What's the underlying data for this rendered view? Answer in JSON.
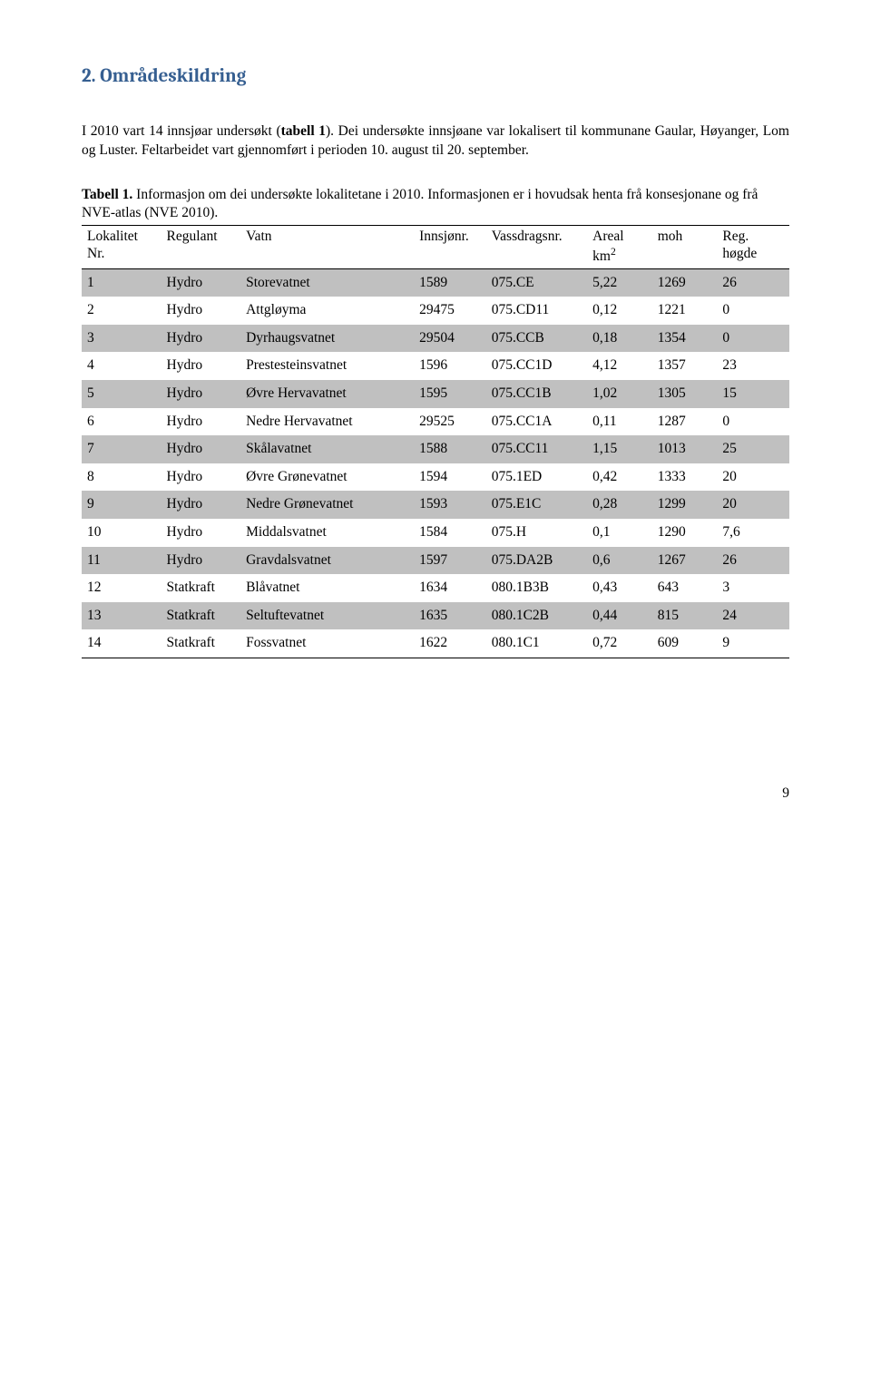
{
  "heading": "2. Områdeskildring",
  "intro_html": "I 2010 vart 14 innsjøar undersøkt (<b>tabell 1</b>). Dei undersøkte innsjøane var lokalisert til kommunane Gaular, Høyanger, Lom og Luster. Feltarbeidet vart gjennomført i perioden 10. august til 20. september.",
  "caption_html": "<b>Tabell 1.</b> Informasjon om dei undersøkte lokalitetane i 2010. Informasjonen er i hovudsak henta frå konsesjonane og frå NVE-atlas (NVE 2010).",
  "table": {
    "columns": [
      {
        "label_html": "Lokalitet<br>Nr.",
        "width": "11%"
      },
      {
        "label_html": "Regulant",
        "width": "11%"
      },
      {
        "label_html": "Vatn",
        "width": "24%"
      },
      {
        "label_html": "Innsjønr.",
        "width": "10%"
      },
      {
        "label_html": "Vassdragsnr.",
        "width": "14%"
      },
      {
        "label_html": "Areal<br>km<sup>2</sup>",
        "width": "9%"
      },
      {
        "label_html": "moh",
        "width": "9%"
      },
      {
        "label_html": "Reg.<br>høgde",
        "width": "10%"
      }
    ],
    "rows": [
      {
        "shaded": true,
        "cells": [
          "1",
          "Hydro",
          "Storevatnet",
          "1589",
          "075.CE",
          "5,22",
          "1269",
          "26"
        ]
      },
      {
        "shaded": false,
        "cells": [
          "2",
          "Hydro",
          "Attgløyma",
          "29475",
          "075.CD11",
          "0,12",
          "1221",
          "0"
        ]
      },
      {
        "shaded": true,
        "cells": [
          "3",
          "Hydro",
          "Dyrhaugsvatnet",
          "29504",
          "075.CCB",
          "0,18",
          "1354",
          "0"
        ]
      },
      {
        "shaded": false,
        "cells": [
          "4",
          "Hydro",
          "Prestesteinsvatnet",
          "1596",
          "075.CC1D",
          "4,12",
          "1357",
          "23"
        ]
      },
      {
        "shaded": true,
        "cells": [
          "5",
          "Hydro",
          "Øvre Hervavatnet",
          "1595",
          "075.CC1B",
          "1,02",
          "1305",
          "15"
        ]
      },
      {
        "shaded": false,
        "cells": [
          "6",
          "Hydro",
          "Nedre Hervavatnet",
          "29525",
          "075.CC1A",
          "0,11",
          "1287",
          "0"
        ]
      },
      {
        "shaded": true,
        "cells": [
          "7",
          "Hydro",
          "Skålavatnet",
          "1588",
          "075.CC11",
          "1,15",
          "1013",
          "25"
        ]
      },
      {
        "shaded": false,
        "cells": [
          "8",
          "Hydro",
          "Øvre Grønevatnet",
          "1594",
          "075.1ED",
          "0,42",
          "1333",
          "20"
        ]
      },
      {
        "shaded": true,
        "cells": [
          "9",
          "Hydro",
          "Nedre Grønevatnet",
          "1593",
          "075.E1C",
          "0,28",
          "1299",
          "20"
        ]
      },
      {
        "shaded": false,
        "cells": [
          "10",
          "Hydro",
          "Middalsvatnet",
          "1584",
          "075.H",
          "0,1",
          "1290",
          "7,6"
        ]
      },
      {
        "shaded": true,
        "cells": [
          "11",
          "Hydro",
          "Gravdalsvatnet",
          "1597",
          "075.DA2B",
          "0,6",
          "1267",
          "26"
        ]
      },
      {
        "shaded": false,
        "cells": [
          "12",
          "Statkraft",
          "Blåvatnet",
          "1634",
          "080.1B3B",
          "0,43",
          "643",
          "3"
        ]
      },
      {
        "shaded": true,
        "cells": [
          "13",
          "Statkraft",
          "Seltuftevatnet",
          "1635",
          "080.1C2B",
          "0,44",
          "815",
          "24"
        ]
      },
      {
        "shaded": false,
        "cells": [
          "14",
          "Statkraft",
          "Fossvatnet",
          "1622",
          "080.1C1",
          "0,72",
          "609",
          "9"
        ]
      }
    ]
  },
  "page_number": "9"
}
